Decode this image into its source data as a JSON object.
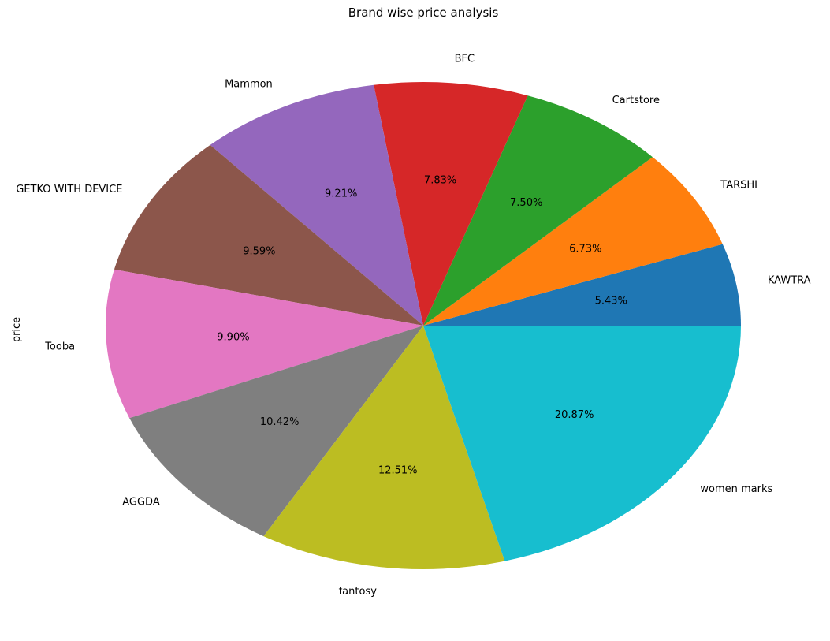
{
  "chart_data": {
    "type": "pie",
    "title": "Brand wise price analysis",
    "ylabel": "price",
    "labels": [
      "KAWTRA",
      "TARSHI",
      "Cartstore",
      "BFC",
      "Mammon",
      "GETKO WITH DEVICE",
      "Tooba",
      "AGGDA",
      "fantosy",
      "women marks"
    ],
    "values": [
      5.43,
      6.73,
      7.5,
      7.83,
      9.21,
      9.59,
      9.9,
      10.42,
      12.51,
      20.87
    ],
    "percent_labels": [
      "5.43%",
      "6.73%",
      "7.50%",
      "7.83%",
      "9.21%",
      "9.59%",
      "9.90%",
      "10.42%",
      "12.51%",
      "20.87%"
    ],
    "colors": [
      "#1f77b4",
      "#ff7f0e",
      "#2ca02c",
      "#d62728",
      "#9467bd",
      "#8c564b",
      "#e377c2",
      "#7f7f7f",
      "#bcbd22",
      "#17becf"
    ],
    "start_angle": 0,
    "direction": "counterclockwise"
  }
}
